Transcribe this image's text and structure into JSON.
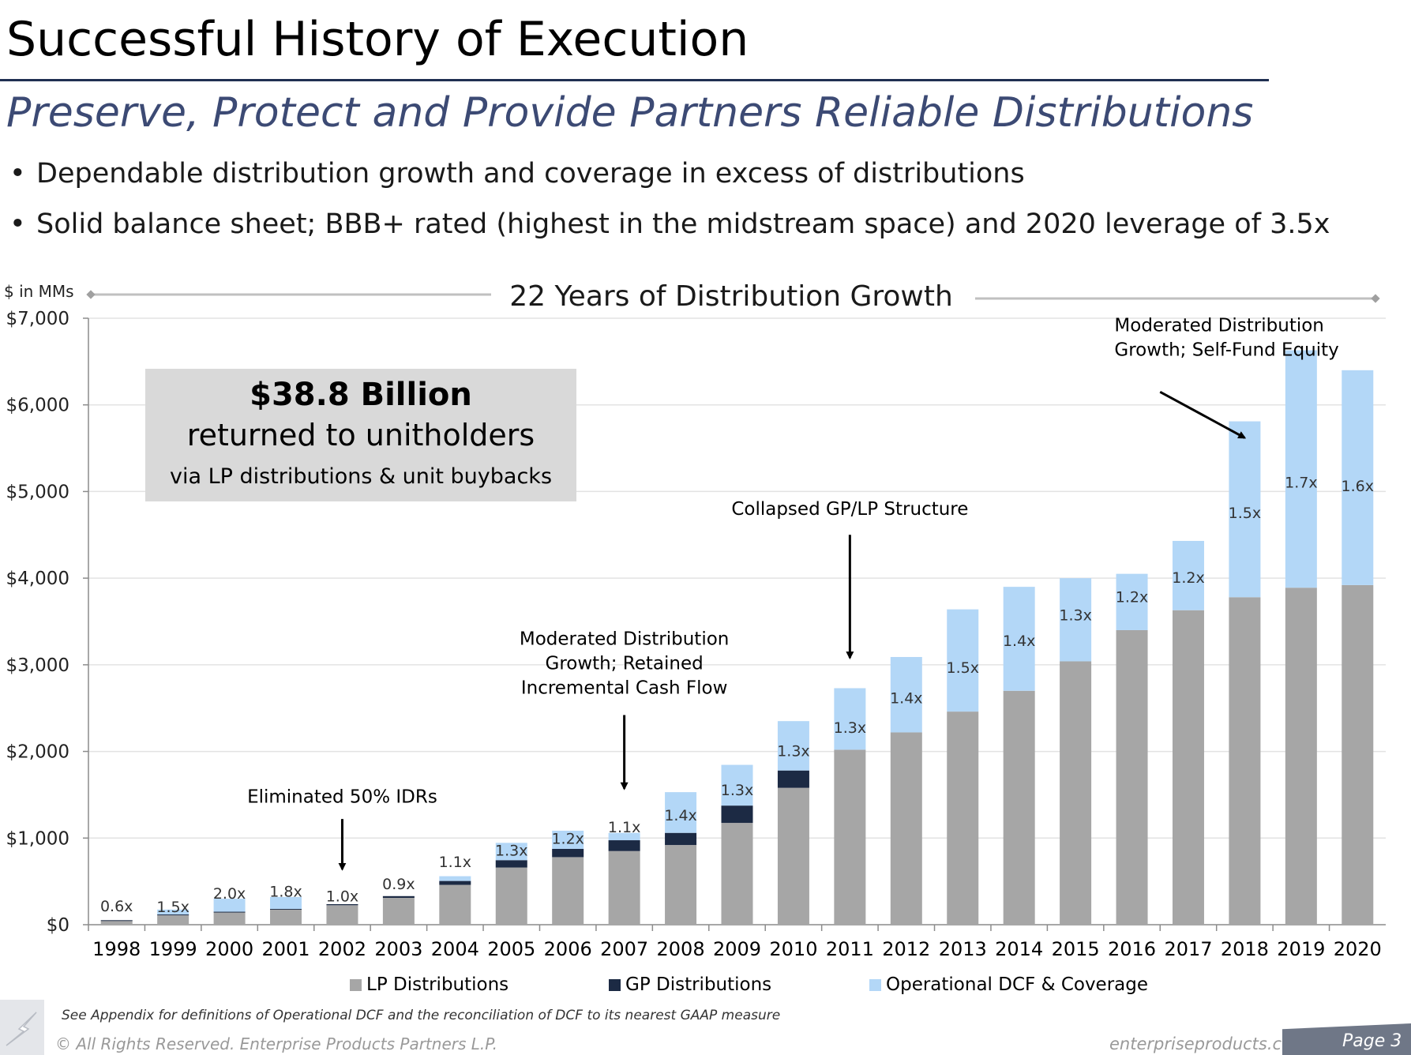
{
  "header": {
    "title": "Successful History of Execution",
    "subtitle": "Preserve, Protect and Provide Partners Reliable Distributions",
    "bullets": [
      "Dependable distribution growth and coverage in excess of distributions",
      "Solid balance sheet; BBB+ rated (highest in the midstream space) and 2020 leverage of 3.5x"
    ]
  },
  "chart_data": {
    "type": "bar",
    "stacked": true,
    "title": "22 Years of Distribution Growth",
    "unit_label": "$ in MMs",
    "ylim": [
      0,
      7000
    ],
    "yticks": [
      {
        "value": 0,
        "label": "$0"
      },
      {
        "value": 1000,
        "label": "$1,000"
      },
      {
        "value": 2000,
        "label": "$2,000"
      },
      {
        "value": 3000,
        "label": "$3,000"
      },
      {
        "value": 4000,
        "label": "$4,000"
      },
      {
        "value": 5000,
        "label": "$5,000"
      },
      {
        "value": 6000,
        "label": "$6,000"
      },
      {
        "value": 7000,
        "label": "$7,000"
      }
    ],
    "categories": [
      "1998",
      "1999",
      "2000",
      "2001",
      "2002",
      "2003",
      "2004",
      "2005",
      "2006",
      "2007",
      "2008",
      "2009",
      "2010",
      "2011",
      "2012",
      "2013",
      "2014",
      "2015",
      "2016",
      "2017",
      "2018",
      "2019",
      "2020"
    ],
    "series": [
      {
        "name": "LP Distributions",
        "color": "#a6a6a6",
        "values": [
          50,
          115,
          145,
          175,
          225,
          310,
          460,
          660,
          780,
          850,
          920,
          1175,
          1580,
          2020,
          2220,
          2460,
          2700,
          3040,
          3400,
          3630,
          3780,
          3890,
          3920
        ]
      },
      {
        "name": "GP Distributions",
        "color": "#1c2a44",
        "values": [
          2,
          3,
          5,
          8,
          12,
          20,
          45,
          85,
          95,
          125,
          140,
          200,
          200,
          0,
          0,
          0,
          0,
          0,
          0,
          0,
          0,
          0,
          0
        ]
      },
      {
        "name": "Operational DCF & Coverage",
        "color": "#b3d7f7",
        "values": [
          0,
          57,
          150,
          137,
          0,
          0,
          55,
          200,
          210,
          85,
          470,
          470,
          570,
          710,
          870,
          1180,
          1200,
          960,
          650,
          800,
          2030,
          2740,
          2480
        ]
      }
    ],
    "coverage_labels": [
      "0.6x",
      "1.5x",
      "2.0x",
      "1.8x",
      "1.0x",
      "0.9x",
      "1.1x",
      "1.3x",
      "1.2x",
      "1.1x",
      "1.4x",
      "1.3x",
      "1.3x",
      "1.3x",
      "1.4x",
      "1.5x",
      "1.4x",
      "1.3x",
      "1.2x",
      "1.2x",
      "1.5x",
      "1.7x",
      "1.6x"
    ],
    "coverage_label_y": [
      210,
      200,
      355,
      380,
      325,
      465,
      720,
      850,
      990,
      1120,
      1260,
      1550,
      2000,
      2270,
      2610,
      2960,
      3270,
      3570,
      3780,
      4000,
      4750,
      5100,
      5060
    ],
    "annotations": [
      {
        "id": "eliminated-idrs",
        "text": [
          "Eliminated 50% IDRs"
        ],
        "category": "2002",
        "text_y": 1410,
        "arrow": [
          1220,
          640
        ]
      },
      {
        "id": "moderated-retained",
        "text": [
          "Moderated Distribution",
          "Growth; Retained",
          "Incremental Cash Flow"
        ],
        "category": "2007",
        "text_y": 3230,
        "arrow": [
          2420,
          1570
        ]
      },
      {
        "id": "collapsed-gp-lp",
        "text": [
          "Collapsed GP/LP Structure"
        ],
        "category": "2011",
        "text_y": 4730,
        "arrow": [
          4500,
          3080
        ]
      },
      {
        "id": "moderated-self-fund",
        "text": [
          "Moderated Distribution",
          "Growth; Self-Fund Equity"
        ],
        "category": "2018",
        "text_y": 6850,
        "arrow_from": [
          2016.5,
          6150
        ],
        "arrow_to": [
          2018,
          5620
        ]
      }
    ],
    "callout": {
      "headline": "$38.8 Billion",
      "line2": "returned to unitholders",
      "line3": "via LP distributions & unit buybacks"
    },
    "legend_position": "bottom",
    "grid": true
  },
  "footer": {
    "footnote": "See Appendix for definitions of Operational DCF and the reconciliation of DCF to its nearest GAAP measure",
    "copyright": "© All Rights Reserved. Enterprise Products Partners L.P.",
    "website": "enterpriseproducts.com",
    "page": "Page 3"
  }
}
